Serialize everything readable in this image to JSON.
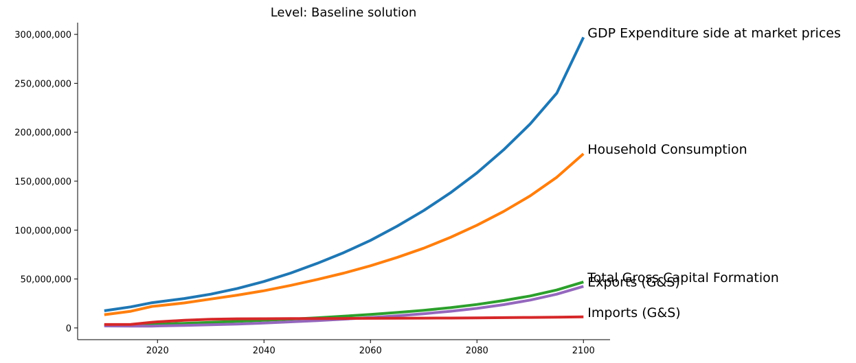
{
  "chart_data": {
    "type": "line",
    "title": "Level: Baseline solution",
    "xlabel": "",
    "ylabel": "",
    "xlim": [
      2005,
      2105
    ],
    "ylim": [
      -12000000,
      312000000
    ],
    "xticks": [
      2020,
      2040,
      2060,
      2080,
      2100
    ],
    "yticks": [
      0,
      50000000,
      100000000,
      150000000,
      200000000,
      250000000,
      300000000
    ],
    "ytick_labels": [
      "0",
      "50,000,000",
      "100,000,000",
      "150,000,000",
      "200,000,000",
      "250,000,000",
      "300,000,000"
    ],
    "xtick_labels": [
      "2020",
      "2040",
      "2060",
      "2080",
      "2100"
    ],
    "grid": false,
    "legend": "end-of-line labels",
    "x": [
      2010,
      2015,
      2019,
      2020,
      2025,
      2030,
      2035,
      2040,
      2045,
      2050,
      2055,
      2060,
      2065,
      2070,
      2075,
      2080,
      2085,
      2090,
      2095,
      2100
    ],
    "series": [
      {
        "name": "GDP Expenditure side at market prices",
        "color": "#1f77b4",
        "values": [
          17500000,
          21500000,
          25800000,
          26500000,
          30000000,
          34500000,
          40300000,
          47500000,
          56000000,
          66000000,
          77000000,
          89500000,
          104000000,
          120000000,
          138000000,
          158500000,
          182000000,
          208500000,
          240000000,
          297000000
        ]
      },
      {
        "name": "Household Consumption",
        "color": "#ff7f0e",
        "values": [
          13500000,
          17000000,
          22000000,
          22500000,
          25500000,
          29500000,
          33500000,
          38000000,
          43500000,
          49500000,
          56000000,
          63500000,
          72000000,
          81500000,
          92500000,
          105000000,
          119000000,
          135000000,
          154000000,
          178000000
        ]
      },
      {
        "name": "Total Gross Capital Formation",
        "color": "#2ca02c",
        "values": [
          2800000,
          3000000,
          3600000,
          3800000,
          4700000,
          5700000,
          6700000,
          7800000,
          9000000,
          10400000,
          12000000,
          13800000,
          15800000,
          18000000,
          20700000,
          24000000,
          28000000,
          32700000,
          38800000,
          47000000
        ]
      },
      {
        "name": "Exports (G&S)",
        "color": "#9467bd",
        "values": [
          2000000,
          1800000,
          1900000,
          2000000,
          2500000,
          3200000,
          4000000,
          5000000,
          6200000,
          7500000,
          9000000,
          10600000,
          12400000,
          14500000,
          17000000,
          20000000,
          23800000,
          28500000,
          34500000,
          42500000
        ]
      },
      {
        "name": "Imports (G&S)",
        "color": "#d62728",
        "values": [
          3500000,
          3600000,
          5800000,
          6200000,
          7800000,
          8900000,
          9300000,
          9400000,
          9500000,
          9600000,
          9700000,
          9800000,
          9900000,
          10000000,
          10100000,
          10300000,
          10500000,
          10700000,
          11000000,
          11300000
        ]
      }
    ]
  }
}
